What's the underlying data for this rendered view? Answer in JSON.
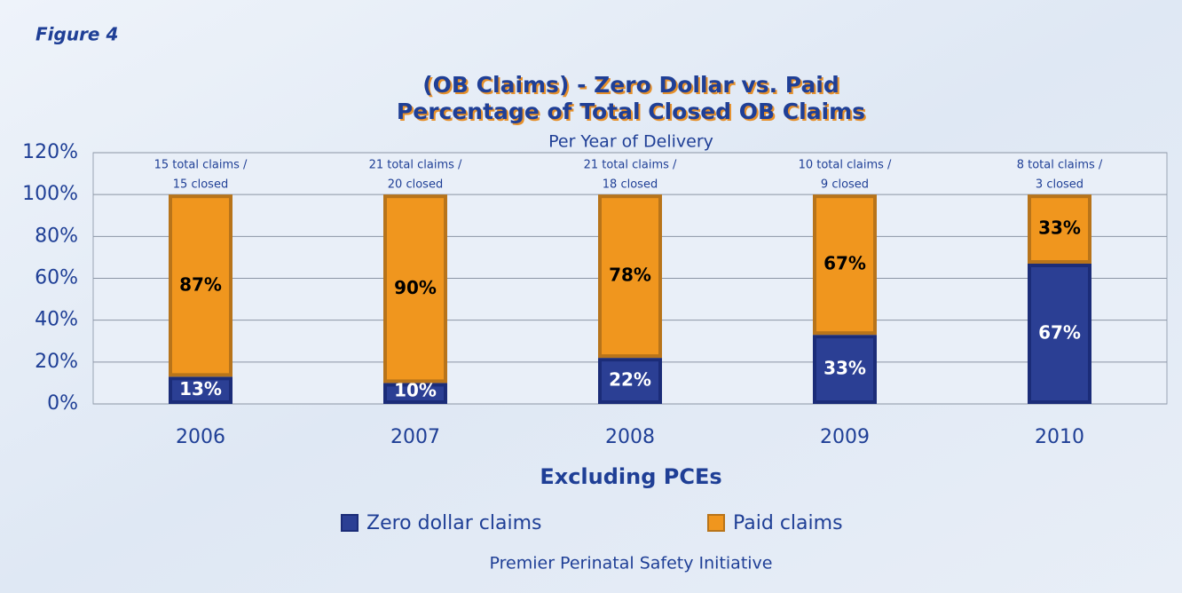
{
  "figure_label": "Figure 4",
  "chart_data": {
    "type": "stacked_bar",
    "title": [
      "(OB Claims) - Zero Dollar vs. Paid",
      "Percentage of Total Closed OB Claims"
    ],
    "subtitle": "Per Year of Delivery",
    "x_label": "Excluding PCEs",
    "source": "Premier Perinatal Safety Initiative",
    "categories": [
      "2006",
      "2007",
      "2008",
      "2009",
      "2010"
    ],
    "annotations": [
      [
        "15 total claims /",
        "15 closed"
      ],
      [
        "21 total claims /",
        "20 closed"
      ],
      [
        "21 total claims /",
        "18 closed"
      ],
      [
        "10 total claims /",
        "9 closed"
      ],
      [
        "8 total claims /",
        "3 closed"
      ]
    ],
    "series": [
      {
        "name": "Zero dollar claims",
        "color": "#2b3f94",
        "values": [
          13,
          10,
          22,
          33,
          67
        ],
        "value_labels": [
          "13%",
          "10%",
          "22%",
          "33%",
          "67%"
        ]
      },
      {
        "name": "Paid claims",
        "color": "#f0961e",
        "values": [
          87,
          90,
          78,
          67,
          33
        ],
        "value_labels": [
          "87%",
          "90%",
          "78%",
          "67%",
          "33%"
        ]
      }
    ],
    "ylim": [
      0,
      120
    ],
    "yticks": [
      {
        "value": 0,
        "label": "0%"
      },
      {
        "value": 20,
        "label": "20%"
      },
      {
        "value": 40,
        "label": "40%"
      },
      {
        "value": 60,
        "label": "60%"
      },
      {
        "value": 80,
        "label": "80%"
      },
      {
        "value": 100,
        "label": "100%"
      },
      {
        "value": 120,
        "label": "120%"
      }
    ],
    "grid": true
  }
}
